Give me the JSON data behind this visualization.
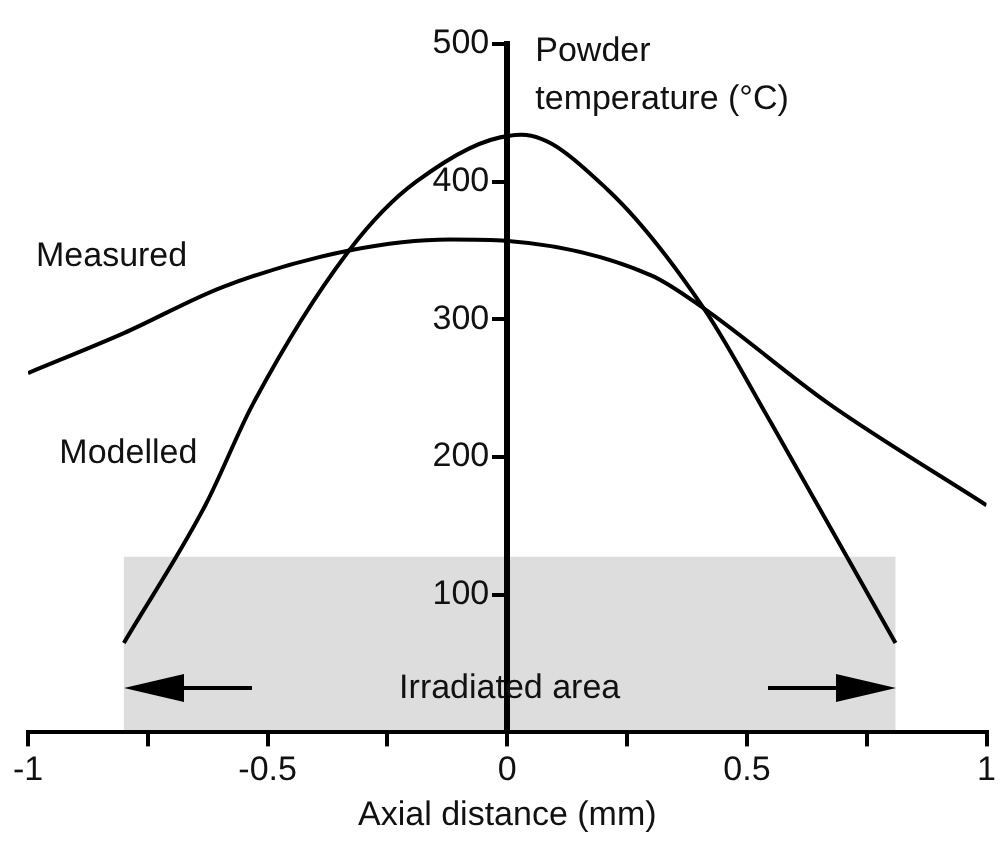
{
  "chart_data": {
    "type": "line",
    "xlabel": "Axial distance (mm)",
    "ylabel": "Powder temperature (°C)",
    "x": [
      -1,
      -0.8,
      -0.59,
      -0.33,
      -0.12,
      0,
      0.3,
      0.41,
      0.67,
      1
    ],
    "series": [
      {
        "name": "Measured",
        "color": "#000000",
        "values": [
          261,
          290,
          324,
          350,
          358,
          357,
          332,
          308,
          239,
          165
        ]
      },
      {
        "name": "Modelled",
        "color": "#000000",
        "x": [
          -0.8,
          -0.63,
          -0.53,
          -0.33,
          -0.19,
          0.03,
          0.21,
          0.41,
          0.55,
          0.81
        ],
        "values": [
          65,
          165,
          239,
          350,
          400,
          434,
          394,
          308,
          225,
          65
        ]
      }
    ],
    "xlim": [
      -1,
      1
    ],
    "ylim": [
      0,
      500
    ],
    "xticks": [
      -1,
      {
        "value": -0.75,
        "label": null
      },
      -0.5,
      {
        "value": -0.25,
        "label": null
      },
      0,
      {
        "value": 0.25,
        "label": null
      },
      0.5,
      {
        "value": 0.75,
        "label": null
      },
      1
    ],
    "yticks": [
      100,
      200,
      300,
      400,
      500
    ],
    "bands": [
      {
        "axis": "x",
        "from": -0.8,
        "to": 0.81,
        "label": "Irradiated area",
        "color": "#dddddd"
      }
    ],
    "grid": false,
    "legend": false,
    "marker": "none",
    "line_style": "solid"
  }
}
